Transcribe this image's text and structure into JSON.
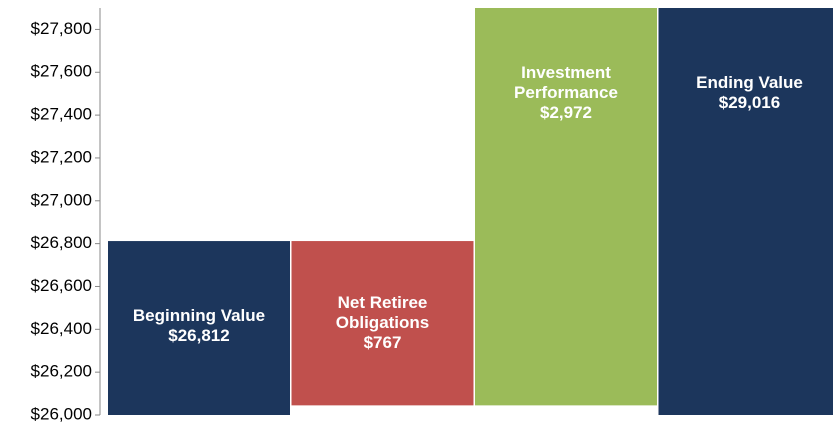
{
  "chart_data": {
    "type": "waterfall",
    "categories": [
      "Beginning Value",
      "Net Retiree Obligations",
      "Investment Performance",
      "Ending Value"
    ],
    "values": [
      26812,
      -767,
      2972,
      29016
    ],
    "value_labels": [
      "$26,812",
      "$767",
      "$2,972",
      "$29,016"
    ],
    "colors": [
      "#1c365c",
      "#c0504d",
      "#9bbb59",
      "#1c365c"
    ],
    "ylim": [
      26000,
      27900
    ],
    "yticks": [
      {
        "value": 26000,
        "label": "$26,000"
      },
      {
        "value": 26200,
        "label": "$26,200"
      },
      {
        "value": 26400,
        "label": "$26,400"
      },
      {
        "value": 26600,
        "label": "$26,600"
      },
      {
        "value": 26800,
        "label": "$26,800"
      },
      {
        "value": 27000,
        "label": "$27,000"
      },
      {
        "value": 27200,
        "label": "$27,200"
      },
      {
        "value": 27400,
        "label": "$27,400"
      },
      {
        "value": 27600,
        "label": "$27,600"
      },
      {
        "value": 27800,
        "label": "$27,800"
      }
    ],
    "grid": false
  }
}
